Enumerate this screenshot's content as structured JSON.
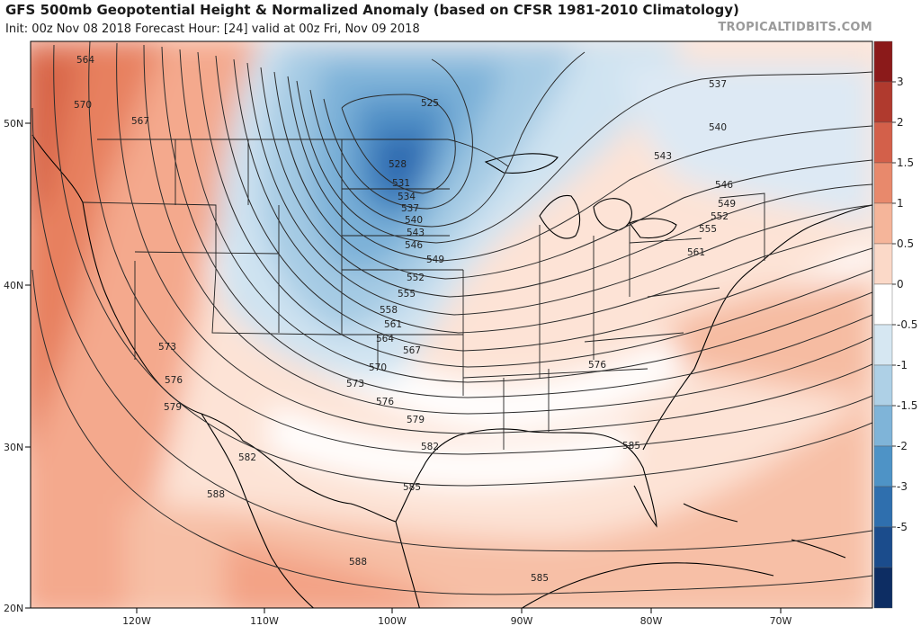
{
  "header": {
    "title": "GFS 500mb Geopotential Height & Normalized Anomaly (based on CFSR 1981-2010 Climatology)",
    "subtitle": "Init: 00z Nov 08 2018   Forecast Hour: [24]   valid at 00z Fri, Nov 09 2018",
    "site": "TROPICALTIDBITS.COM"
  },
  "axes": {
    "lat_labels": [
      "50N",
      "40N",
      "30N",
      "20N"
    ],
    "lon_labels": [
      "120W",
      "110W",
      "100W",
      "90W",
      "80W",
      "70W"
    ]
  },
  "colorbar": {
    "ticks": [
      "3",
      "2",
      "1.5",
      "1",
      "0.5",
      "0",
      "-0.5",
      "-1",
      "-1.5",
      "-2",
      "-3",
      "-5"
    ],
    "colors": [
      "#8b1a1a",
      "#b03a2e",
      "#d3604a",
      "#e8896c",
      "#f5b59a",
      "#fbd9c8",
      "#ffffff",
      "#d6e7f2",
      "#aed0e6",
      "#7fb4d8",
      "#4e93c6",
      "#2f6fae",
      "#1b4c8c",
      "#0d2d63"
    ]
  },
  "contour_labels": [
    {
      "text": "564"
    },
    {
      "text": "570"
    },
    {
      "text": "567"
    },
    {
      "text": "525"
    },
    {
      "text": "528"
    },
    {
      "text": "531"
    },
    {
      "text": "534"
    },
    {
      "text": "537"
    },
    {
      "text": "540"
    },
    {
      "text": "543"
    },
    {
      "text": "546"
    },
    {
      "text": "549"
    },
    {
      "text": "552"
    },
    {
      "text": "555"
    },
    {
      "text": "558"
    },
    {
      "text": "561"
    },
    {
      "text": "564"
    },
    {
      "text": "567"
    },
    {
      "text": "570"
    },
    {
      "text": "573"
    },
    {
      "text": "576"
    },
    {
      "text": "573"
    },
    {
      "text": "576"
    },
    {
      "text": "579"
    },
    {
      "text": "579"
    },
    {
      "text": "582"
    },
    {
      "text": "582"
    },
    {
      "text": "585"
    },
    {
      "text": "585"
    },
    {
      "text": "588"
    },
    {
      "text": "588"
    },
    {
      "text": "585"
    },
    {
      "text": "576"
    },
    {
      "text": "561"
    },
    {
      "text": "555"
    },
    {
      "text": "552"
    },
    {
      "text": "549"
    },
    {
      "text": "546"
    },
    {
      "text": "543"
    },
    {
      "text": "540"
    },
    {
      "text": "537"
    }
  ]
}
